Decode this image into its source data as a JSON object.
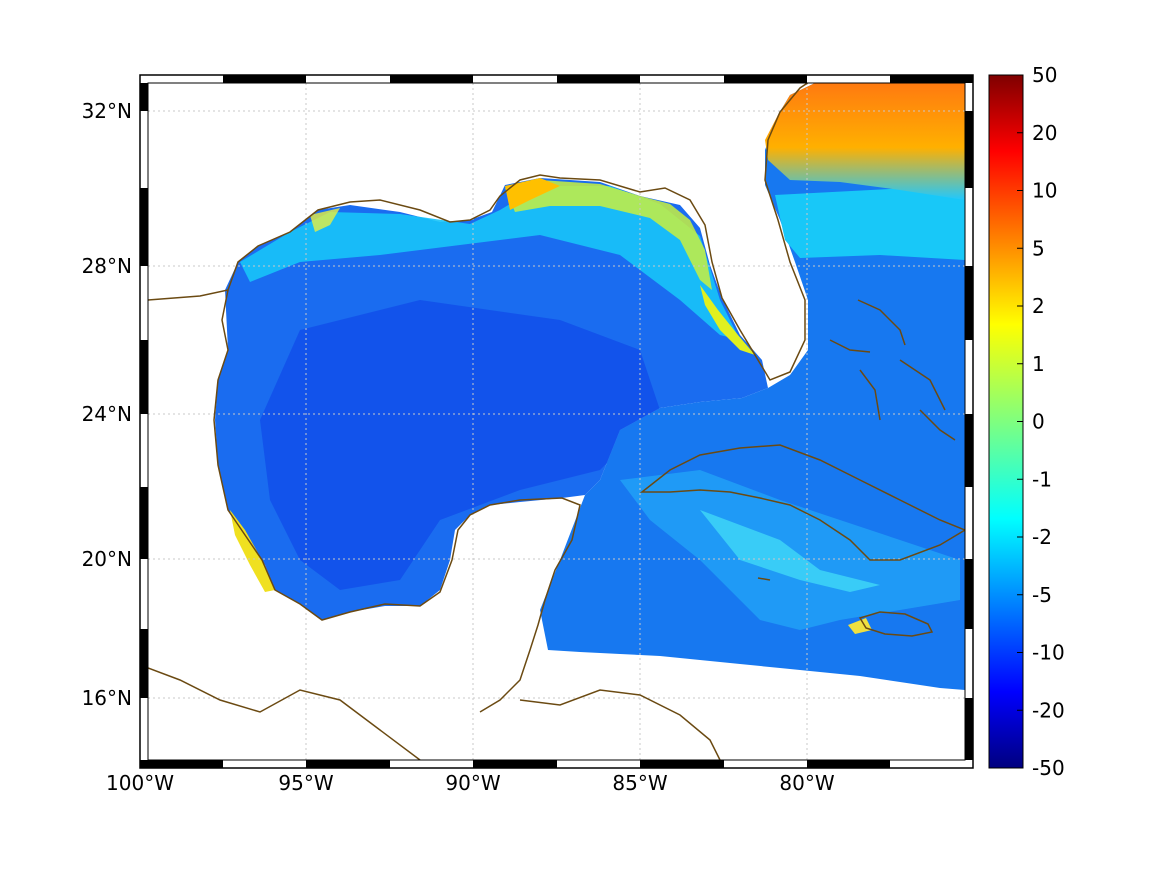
{
  "map": {
    "x_ticks": [
      "100°W",
      "95°W",
      "90°W",
      "85°W",
      "80°W"
    ],
    "y_ticks": [
      "32°N",
      "28°N",
      "24°N",
      "20°N",
      "16°N"
    ],
    "lon_range": [
      -100,
      -75
    ],
    "lat_range": [
      14.2,
      33
    ],
    "grid": true,
    "projection": "mercator",
    "coastline_color": "#6b4a12"
  },
  "colorbar": {
    "ticks": [
      "50",
      "20",
      "10",
      "5",
      "2",
      "1",
      "0",
      "-1",
      "-2",
      "-5",
      "-10",
      "-20",
      "-50"
    ],
    "colormap": "jet",
    "position": "right"
  },
  "chart_data": {
    "type": "heatmap",
    "title": "",
    "xlabel": "",
    "ylabel": "",
    "xlim": [
      -100,
      -75
    ],
    "ylim": [
      14.2,
      33
    ],
    "x_tick_values": [
      -100,
      -95,
      -90,
      -85,
      -80
    ],
    "y_tick_values": [
      32,
      28,
      24,
      20,
      16
    ],
    "colorbar_ticks": [
      50,
      20,
      10,
      5,
      2,
      1,
      0,
      -1,
      -2,
      -5,
      -10,
      -20,
      -50
    ],
    "colorbar_range": [
      -50,
      50
    ],
    "regions": [
      {
        "name": "",
        "value": 5
      },
      {
        "name": "",
        "value": -1
      },
      {
        "name": "",
        "value": -5
      },
      {
        "name": "",
        "value": -10
      }
    ]
  }
}
